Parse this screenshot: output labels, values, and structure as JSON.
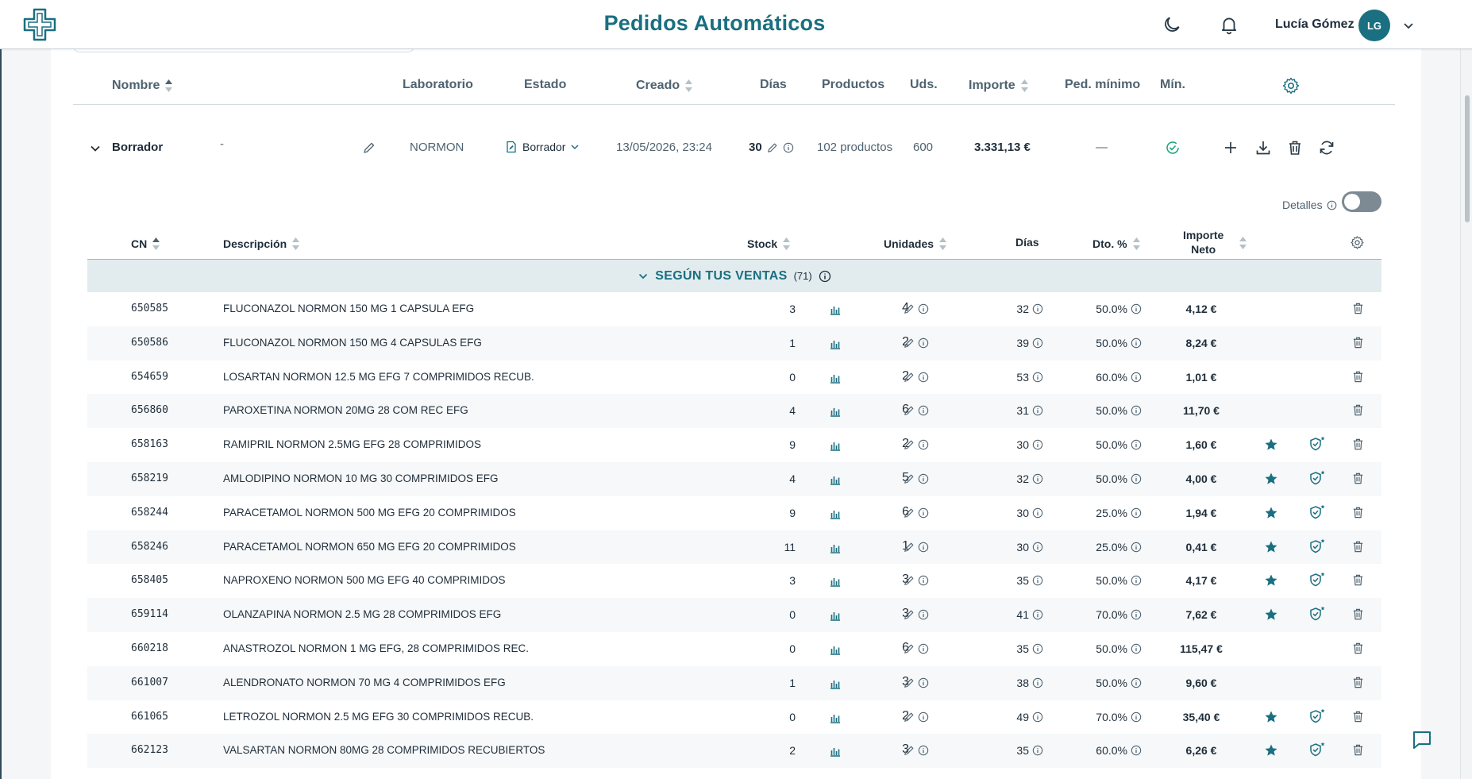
{
  "header": {
    "title": "Pedidos Automáticos",
    "user_name": "Lucía Gómez",
    "user_initials": "LG",
    "icons": [
      "medical-cross-logo",
      "moon-icon",
      "bell-icon",
      "chevron-down-icon"
    ]
  },
  "order_table": {
    "columns": [
      "Nombre",
      "Laboratorio",
      "Estado",
      "Creado",
      "Días",
      "Productos",
      "Uds.",
      "Importe",
      "Ped. mínimo",
      "Mín."
    ],
    "row": {
      "name": "Borrador",
      "subname": "-",
      "laboratory": "NORMON",
      "status": "Borrador",
      "created": "13/05/2026, 23:24",
      "days": "30",
      "products": "102 productos",
      "units": "600",
      "amount": "3.331,13 €",
      "min_order": "—"
    }
  },
  "details_toggle": {
    "label": "Detalles",
    "on": false
  },
  "product_table": {
    "columns": {
      "cn": "CN",
      "description": "Descripción",
      "stock": "Stock",
      "units": "Unidades",
      "days": "Días",
      "discount": "Dto. %",
      "net_line1": "Importe",
      "net_line2": "Neto"
    },
    "group": {
      "label": "SEGÚN TUS VENTAS",
      "count": "(71)"
    },
    "rows": [
      {
        "cn": "650585",
        "desc": "FLUCONAZOL NORMON 150 MG 1 CAPSULA EFG",
        "stock": "3",
        "units": "4",
        "days": "32",
        "dto": "50.0%",
        "net": "4,12 €",
        "fav": false
      },
      {
        "cn": "650586",
        "desc": "FLUCONAZOL NORMON 150 MG 4 CAPSULAS EFG",
        "stock": "1",
        "units": "2",
        "days": "39",
        "dto": "50.0%",
        "net": "8,24 €",
        "fav": false
      },
      {
        "cn": "654659",
        "desc": "LOSARTAN NORMON 12.5 MG EFG 7 COMPRIMIDOS RECUB.",
        "stock": "0",
        "units": "2",
        "days": "53",
        "dto": "60.0%",
        "net": "1,01 €",
        "fav": false
      },
      {
        "cn": "656860",
        "desc": "PAROXETINA NORMON 20MG 28 COM REC EFG",
        "stock": "4",
        "units": "6",
        "days": "31",
        "dto": "50.0%",
        "net": "11,70 €",
        "fav": false
      },
      {
        "cn": "658163",
        "desc": "RAMIPRIL NORMON 2.5MG EFG 28 COMPRIMIDOS",
        "stock": "9",
        "units": "2",
        "days": "30",
        "dto": "50.0%",
        "net": "1,60 €",
        "fav": true
      },
      {
        "cn": "658219",
        "desc": "AMLODIPINO NORMON 10 MG 30 COMPRIMIDOS EFG",
        "stock": "4",
        "units": "5",
        "days": "32",
        "dto": "50.0%",
        "net": "4,00 €",
        "fav": true
      },
      {
        "cn": "658244",
        "desc": "PARACETAMOL NORMON 500 MG EFG 20 COMPRIMIDOS",
        "stock": "9",
        "units": "6",
        "days": "30",
        "dto": "25.0%",
        "net": "1,94 €",
        "fav": true
      },
      {
        "cn": "658246",
        "desc": "PARACETAMOL NORMON 650 MG EFG 20 COMPRIMIDOS",
        "stock": "11",
        "units": "1",
        "days": "30",
        "dto": "25.0%",
        "net": "0,41 €",
        "fav": true
      },
      {
        "cn": "658405",
        "desc": "NAPROXENO NORMON 500 MG EFG 40 COMPRIMIDOS",
        "stock": "3",
        "units": "3",
        "days": "35",
        "dto": "50.0%",
        "net": "4,17 €",
        "fav": true
      },
      {
        "cn": "659114",
        "desc": "OLANZAPINA NORMON 2.5 MG 28 COMPRIMIDOS EFG",
        "stock": "0",
        "units": "3",
        "days": "41",
        "dto": "70.0%",
        "net": "7,62 €",
        "fav": true
      },
      {
        "cn": "660218",
        "desc": "ANASTROZOL NORMON 1 MG EFG, 28 COMPRIMIDOS REC.",
        "stock": "0",
        "units": "6",
        "days": "35",
        "dto": "50.0%",
        "net": "115,47 €",
        "fav": false
      },
      {
        "cn": "661007",
        "desc": "ALENDRONATO NORMON 70 MG 4 COMPRIMIDOS EFG",
        "stock": "1",
        "units": "3",
        "days": "38",
        "dto": "50.0%",
        "net": "9,60 €",
        "fav": false
      },
      {
        "cn": "661065",
        "desc": "LETROZOL NORMON 2.5 MG EFG 30 COMPRIMIDOS RECUB.",
        "stock": "0",
        "units": "2",
        "days": "49",
        "dto": "70.0%",
        "net": "35,40 €",
        "fav": true
      },
      {
        "cn": "662123",
        "desc": "VALSARTAN NORMON 80MG 28 COMPRIMIDOS RECUBIERTOS",
        "stock": "2",
        "units": "3",
        "days": "35",
        "dto": "60.0%",
        "net": "6,26 €",
        "fav": true
      }
    ]
  },
  "colors": {
    "accent": "#1a6f80",
    "success": "#1aa37a",
    "group_bg": "#e2ecef"
  }
}
